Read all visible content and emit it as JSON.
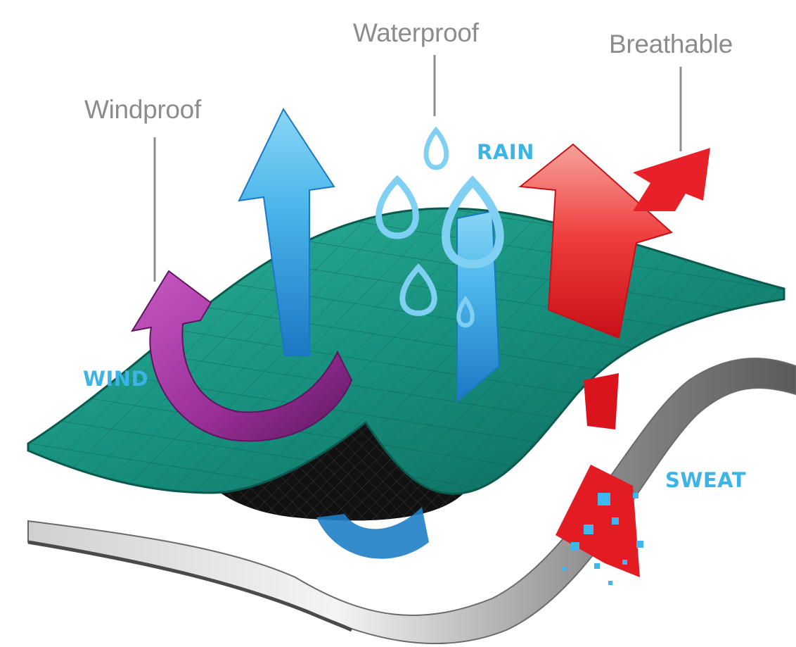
{
  "labels": {
    "waterproof": "Waterproof",
    "breathable": "Breathable",
    "windproof": "Windproof",
    "rain": "RAIN",
    "wind": "WIND",
    "sweat": "SWEAT"
  },
  "colors": {
    "membrane": "#1a9a86",
    "membrane_dark": "#0a5a4e",
    "liner": "#9a9a9a",
    "wind_arrow": "#a93aa6",
    "water_arrow": "#3aa7e0",
    "breath_arrow": "#e8202a",
    "label_grey": "#8c8c8c",
    "tag_blue": "#3db4e6"
  }
}
